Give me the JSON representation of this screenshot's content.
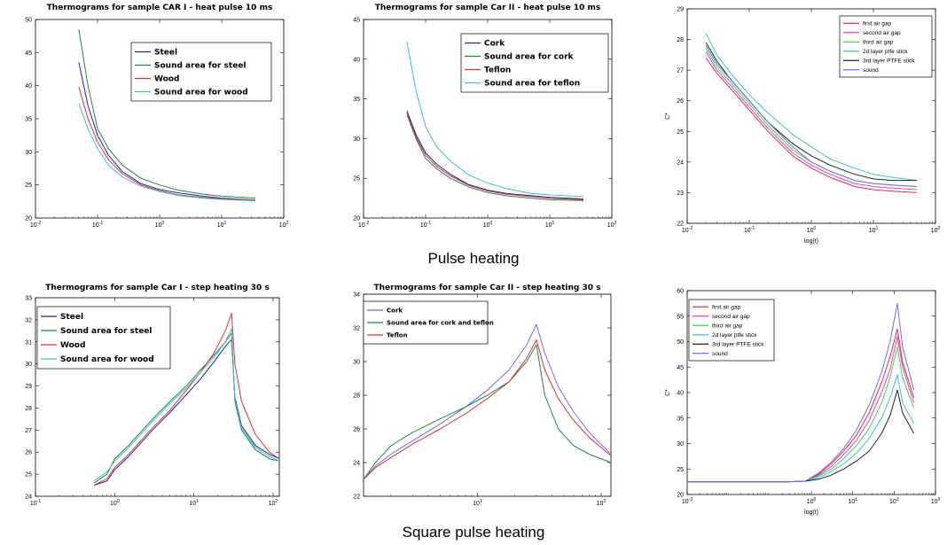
{
  "captions": {
    "pulse": "Pulse heating",
    "square": "Square pulse heating"
  },
  "colors": {
    "blue": "#1f1fb0",
    "green": "#1a8a3a",
    "red": "#e03030",
    "cyan": "#30c8c8",
    "magenta": "#ff33cc",
    "black": "#222222",
    "lightblue": "#6a6aff",
    "lime": "#33dd33"
  },
  "chart_data": [
    {
      "id": "p1",
      "type": "line",
      "title": "Thermograms for sample CAR I - heat pulse 10 ms",
      "xlabel": "",
      "ylabel": "",
      "xscale": "log",
      "xlim": [
        0.01,
        100
      ],
      "ylim": [
        20,
        50
      ],
      "xticks": [
        0.01,
        0.1,
        1,
        10,
        100
      ],
      "yticks": [
        20,
        25,
        30,
        35,
        40,
        45,
        50
      ],
      "grid": false,
      "legend_position": "top-right",
      "series": [
        {
          "name": "Steel",
          "color": "blue",
          "x": [
            0.05,
            0.07,
            0.1,
            0.15,
            0.25,
            0.5,
            1,
            2,
            5,
            10,
            35
          ],
          "y": [
            43.5,
            37,
            32.5,
            29.5,
            27,
            25.2,
            24.3,
            23.8,
            23.3,
            23.0,
            22.7
          ]
        },
        {
          "name": "Sound area for steel",
          "color": "green",
          "x": [
            0.05,
            0.07,
            0.1,
            0.15,
            0.25,
            0.5,
            1,
            2,
            5,
            10,
            35
          ],
          "y": [
            48.5,
            40,
            33.5,
            30.5,
            28,
            26,
            25,
            24.2,
            23.6,
            23.3,
            23.0
          ]
        },
        {
          "name": "Wood",
          "color": "red",
          "x": [
            0.05,
            0.07,
            0.1,
            0.15,
            0.25,
            0.5,
            1,
            2,
            5,
            10,
            35
          ],
          "y": [
            39.8,
            35,
            31.5,
            28.8,
            26.7,
            25,
            24.1,
            23.5,
            23.1,
            22.9,
            22.7
          ]
        },
        {
          "name": "Sound area for wood",
          "color": "cyan",
          "x": [
            0.05,
            0.07,
            0.1,
            0.15,
            0.25,
            0.5,
            1,
            2,
            5,
            10,
            35
          ],
          "y": [
            37.3,
            33.5,
            30.5,
            28,
            26.2,
            24.8,
            24,
            23.4,
            23.0,
            22.8,
            22.6
          ]
        }
      ]
    },
    {
      "id": "p2",
      "type": "line",
      "title": "Thermograms for sample Car II - heat pulse 10 ms",
      "xlabel": "",
      "ylabel": "",
      "xscale": "log",
      "xlim": [
        0.01,
        100
      ],
      "ylim": [
        20,
        45
      ],
      "xticks": [
        0.01,
        0.1,
        1,
        10,
        100
      ],
      "yticks": [
        20,
        25,
        30,
        35,
        40,
        45
      ],
      "grid": false,
      "legend_position": "top-right",
      "series": [
        {
          "name": "Cork",
          "color": "blue",
          "x": [
            0.05,
            0.07,
            0.1,
            0.15,
            0.25,
            0.5,
            1,
            2,
            5,
            10,
            35
          ],
          "y": [
            33.5,
            30.5,
            28.2,
            26.8,
            25.5,
            24.2,
            23.5,
            23.1,
            22.8,
            22.6,
            22.4
          ]
        },
        {
          "name": "Sound area for cork",
          "color": "green",
          "x": [
            0.05,
            0.07,
            0.1,
            0.15,
            0.25,
            0.5,
            1,
            2,
            5,
            10,
            35
          ],
          "y": [
            33.0,
            30,
            27.5,
            26.2,
            25,
            23.9,
            23.2,
            22.8,
            22.5,
            22.3,
            22.2
          ]
        },
        {
          "name": "Teflon",
          "color": "red",
          "x": [
            0.05,
            0.07,
            0.1,
            0.15,
            0.25,
            0.5,
            1,
            2,
            5,
            10,
            35
          ],
          "y": [
            33.3,
            30.2,
            27.9,
            26.5,
            25.3,
            24.1,
            23.4,
            23.0,
            22.7,
            22.5,
            22.3
          ]
        },
        {
          "name": "Sound area for teflon",
          "color": "cyan",
          "x": [
            0.05,
            0.07,
            0.1,
            0.15,
            0.25,
            0.5,
            1,
            2,
            5,
            10,
            35
          ],
          "y": [
            42.2,
            36,
            31.5,
            29,
            27.2,
            25.4,
            24.4,
            23.7,
            23.1,
            22.9,
            22.7
          ]
        }
      ]
    },
    {
      "id": "p3",
      "type": "line",
      "title": "",
      "xlabel": "log(t)",
      "ylabel": "C*",
      "xscale": "log",
      "xlim": [
        0.01,
        100
      ],
      "ylim": [
        22,
        29
      ],
      "xticks": [
        0.01,
        0.1,
        1,
        10,
        100
      ],
      "yticks": [
        22,
        23,
        24,
        25,
        26,
        27,
        28,
        29
      ],
      "grid": false,
      "legend_position": "top-right",
      "series": [
        {
          "name": "first air gap",
          "color": "red",
          "x": [
            0.02,
            0.03,
            0.05,
            0.1,
            0.2,
            0.5,
            1,
            2,
            5,
            10,
            20,
            50
          ],
          "y": [
            27.4,
            26.9,
            26.4,
            25.7,
            25.0,
            24.2,
            23.8,
            23.5,
            23.2,
            23.1,
            23.05,
            23.0
          ]
        },
        {
          "name": "second air gap",
          "color": "magenta",
          "x": [
            0.02,
            0.03,
            0.05,
            0.1,
            0.2,
            0.5,
            1,
            2,
            5,
            10,
            20,
            50
          ],
          "y": [
            27.6,
            27.0,
            26.5,
            25.8,
            25.1,
            24.3,
            23.9,
            23.6,
            23.3,
            23.2,
            23.15,
            23.1
          ]
        },
        {
          "name": "third air gap",
          "color": "lime",
          "x": [
            0.02,
            0.03,
            0.05,
            0.1,
            0.2,
            0.5,
            1,
            2,
            5,
            10,
            20,
            50
          ],
          "y": [
            27.7,
            27.1,
            26.6,
            25.9,
            25.2,
            24.4,
            24.0,
            23.7,
            23.4,
            23.3,
            23.25,
            23.2
          ]
        },
        {
          "name": "2d layer ptfe stick",
          "color": "cyan",
          "x": [
            0.02,
            0.03,
            0.05,
            0.1,
            0.2,
            0.5,
            1,
            2,
            5,
            10,
            20,
            50
          ],
          "y": [
            28.2,
            27.5,
            26.9,
            26.2,
            25.6,
            24.9,
            24.5,
            24.1,
            23.8,
            23.6,
            23.5,
            23.4
          ]
        },
        {
          "name": "3rd layer PTFE stick",
          "color": "black",
          "x": [
            0.02,
            0.03,
            0.05,
            0.1,
            0.2,
            0.5,
            1,
            2,
            5,
            10,
            20,
            50
          ],
          "y": [
            27.9,
            27.3,
            26.7,
            26.0,
            25.3,
            24.6,
            24.2,
            23.9,
            23.6,
            23.45,
            23.4,
            23.4
          ]
        },
        {
          "name": "sound",
          "color": "lightblue",
          "x": [
            0.02,
            0.03,
            0.05,
            0.1,
            0.2,
            0.5,
            1,
            2,
            5,
            10,
            20,
            50
          ],
          "y": [
            27.8,
            27.2,
            26.7,
            26.0,
            25.3,
            24.5,
            24.0,
            23.7,
            23.4,
            23.3,
            23.25,
            23.2
          ]
        }
      ]
    },
    {
      "id": "p4",
      "type": "line",
      "title": "Thermograms for sample Car I - step heating 30 s",
      "xlabel": "",
      "ylabel": "",
      "xscale": "log",
      "xlim": [
        0.1,
        120
      ],
      "ylim": [
        24,
        33
      ],
      "xticks": [
        0.1,
        1,
        10,
        100
      ],
      "yticks": [
        24,
        25,
        26,
        27,
        28,
        29,
        30,
        31,
        32,
        33
      ],
      "grid": false,
      "legend_position": "top-left",
      "series": [
        {
          "name": "Steel",
          "color": "blue",
          "x": [
            0.55,
            0.8,
            1,
            1.5,
            2,
            3,
            5,
            8,
            12,
            18,
            25,
            30,
            33,
            40,
            60,
            90,
            120
          ],
          "y": [
            24.5,
            24.7,
            25.2,
            25.8,
            26.3,
            27.0,
            27.8,
            28.6,
            29.3,
            30.1,
            30.8,
            31.1,
            28.5,
            27.2,
            26.3,
            25.9,
            25.7
          ]
        },
        {
          "name": "Sound area for steel",
          "color": "green",
          "x": [
            0.55,
            0.8,
            1,
            1.5,
            2,
            3,
            5,
            8,
            12,
            18,
            25,
            30,
            33,
            40,
            60,
            90,
            120
          ],
          "y": [
            24.6,
            25.0,
            25.7,
            26.3,
            26.8,
            27.5,
            28.3,
            29.0,
            29.7,
            30.4,
            31.0,
            31.4,
            28.3,
            27.0,
            26.1,
            25.7,
            25.6
          ]
        },
        {
          "name": "Wood",
          "color": "red",
          "x": [
            0.55,
            0.8,
            1,
            1.5,
            2,
            3,
            5,
            8,
            12,
            18,
            25,
            30,
            33,
            40,
            60,
            90,
            120
          ],
          "y": [
            24.5,
            24.8,
            25.3,
            25.9,
            26.4,
            27.1,
            27.9,
            28.8,
            29.6,
            30.5,
            31.5,
            32.3,
            30.0,
            28.3,
            26.8,
            26.0,
            25.7
          ]
        },
        {
          "name": "Sound area for wood",
          "color": "cyan",
          "x": [
            0.55,
            0.8,
            1,
            1.5,
            2,
            3,
            5,
            8,
            12,
            18,
            25,
            30,
            33,
            40,
            60,
            90,
            120
          ],
          "y": [
            24.7,
            25.1,
            25.6,
            26.2,
            26.7,
            27.4,
            28.2,
            28.9,
            29.6,
            30.3,
            31.0,
            31.6,
            28.4,
            27.1,
            26.2,
            25.8,
            25.6
          ]
        }
      ]
    },
    {
      "id": "p5",
      "type": "line",
      "title": "Thermograms for sample Car II - step heating 30 s",
      "xlabel": "",
      "ylabel": "",
      "xscale": "log",
      "xlim": [
        1.2,
        120
      ],
      "ylim": [
        22,
        34
      ],
      "xticks": [
        10,
        100
      ],
      "yticks": [
        22,
        24,
        26,
        28,
        30,
        32,
        34
      ],
      "grid": false,
      "legend_position": "top-left",
      "series": [
        {
          "name": "Cork",
          "color": "lightblue",
          "x": [
            1.2,
            1.5,
            2,
            3,
            5,
            8,
            12,
            18,
            25,
            30,
            35,
            45,
            60,
            80,
            120
          ],
          "y": [
            23.0,
            23.8,
            24.5,
            25.3,
            26.3,
            27.3,
            28.3,
            29.5,
            31.0,
            32.2,
            30.5,
            28.5,
            27.0,
            25.8,
            24.5
          ]
        },
        {
          "name": "Sound area for cork and teflon",
          "color": "green",
          "x": [
            1.2,
            1.5,
            2,
            3,
            5,
            8,
            12,
            18,
            25,
            30,
            35,
            45,
            60,
            80,
            120
          ],
          "y": [
            23.0,
            24.0,
            25.0,
            25.8,
            26.6,
            27.3,
            28.0,
            28.8,
            30.0,
            31.0,
            28.0,
            26.0,
            25.0,
            24.5,
            24.0
          ]
        },
        {
          "name": "Teflon",
          "color": "red",
          "x": [
            1.2,
            1.5,
            2,
            3,
            5,
            8,
            12,
            18,
            25,
            30,
            35,
            45,
            60,
            80,
            120
          ],
          "y": [
            23.0,
            23.7,
            24.3,
            25.1,
            26.0,
            26.9,
            27.8,
            28.8,
            30.2,
            31.3,
            29.5,
            27.8,
            26.5,
            25.5,
            24.4
          ]
        }
      ]
    },
    {
      "id": "p6",
      "type": "line",
      "title": "",
      "xlabel": "log(t)",
      "ylabel": "C*",
      "xscale": "log",
      "xlim": [
        0.001,
        1000
      ],
      "ylim": [
        20,
        60
      ],
      "xticks": [
        0.001,
        1,
        10,
        100,
        1000
      ],
      "yticks": [
        20,
        25,
        30,
        35,
        40,
        45,
        50,
        55,
        60
      ],
      "grid": false,
      "legend_position": "top-left",
      "series": [
        {
          "name": "first air gap",
          "color": "red",
          "x": [
            0.001,
            0.3,
            0.7,
            1.5,
            3,
            6,
            12,
            25,
            50,
            80,
            120,
            160,
            300
          ],
          "y": [
            22.5,
            22.5,
            22.6,
            24.0,
            26.0,
            28.5,
            31.5,
            36,
            42,
            47,
            52.5,
            46,
            39
          ]
        },
        {
          "name": "second air gap",
          "color": "magenta",
          "x": [
            0.001,
            0.3,
            0.7,
            1.5,
            3,
            6,
            12,
            25,
            50,
            80,
            120,
            160,
            300
          ],
          "y": [
            22.5,
            22.5,
            22.6,
            23.8,
            25.5,
            27.8,
            30.5,
            34.5,
            40,
            44.5,
            51,
            45,
            38
          ]
        },
        {
          "name": "third air gap",
          "color": "lime",
          "x": [
            0.001,
            0.3,
            0.7,
            1.5,
            3,
            6,
            12,
            25,
            50,
            80,
            120,
            160,
            300
          ],
          "y": [
            22.5,
            22.5,
            22.6,
            23.6,
            25.0,
            27.0,
            29.5,
            33,
            38,
            43,
            49,
            43,
            37
          ]
        },
        {
          "name": "2d layer ptfe stick",
          "color": "cyan",
          "x": [
            0.001,
            0.3,
            0.7,
            1.5,
            3,
            6,
            12,
            25,
            50,
            80,
            120,
            160,
            300
          ],
          "y": [
            22.5,
            22.5,
            22.6,
            23.3,
            24.5,
            26.0,
            28,
            31,
            35,
            39,
            43.5,
            38,
            34
          ]
        },
        {
          "name": "3rd layer PTFE stick",
          "color": "black",
          "x": [
            0.001,
            0.3,
            0.7,
            1.5,
            3,
            6,
            12,
            25,
            50,
            80,
            120,
            160,
            300
          ],
          "y": [
            22.5,
            22.5,
            22.6,
            23.0,
            23.8,
            25.0,
            26.5,
            28.5,
            32,
            35.5,
            40.5,
            36,
            32
          ]
        },
        {
          "name": "sound",
          "color": "lightblue",
          "x": [
            0.001,
            0.3,
            0.7,
            1.5,
            3,
            6,
            12,
            25,
            50,
            80,
            120,
            160,
            300
          ],
          "y": [
            22.5,
            22.5,
            22.6,
            24.2,
            26.3,
            29,
            32.5,
            37.5,
            44,
            50,
            57.5,
            49,
            40.5
          ]
        }
      ]
    }
  ]
}
